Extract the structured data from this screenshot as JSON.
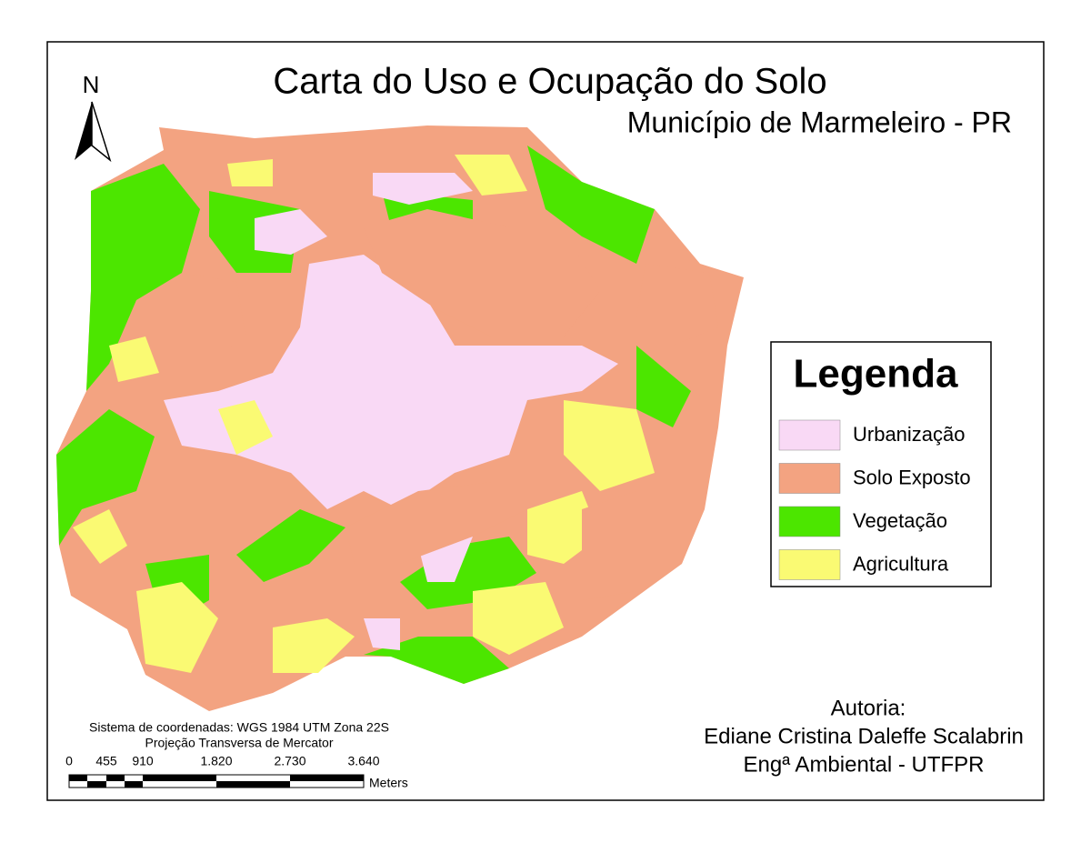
{
  "map": {
    "title": "Carta do Uso e Ocupação do Solo",
    "subtitle": "Município de Marmeleiro - PR",
    "north": "N",
    "legend": {
      "title": "Legenda",
      "items": [
        {
          "label": "Urbanização",
          "color": "#f9d9f5"
        },
        {
          "label": "Solo Exposto",
          "color": "#f3a381"
        },
        {
          "label": "Vegetação",
          "color": "#4ce600"
        },
        {
          "label": "Agricultura",
          "color": "#fafa73"
        }
      ]
    },
    "coordinate_system": "Sistema de coordenadas: WGS 1984 UTM Zona 22S",
    "projection": "Projeção Transversa de Mercator",
    "scale_bar": {
      "labels": [
        "0",
        "455",
        "910",
        "1.820",
        "2.730",
        "3.640"
      ],
      "unit": "Meters"
    },
    "credits": {
      "heading": "Autoria:",
      "author": "Ediane Cristina Daleffe Scalabrin",
      "role": "Engª Ambiental - UTFPR"
    }
  }
}
